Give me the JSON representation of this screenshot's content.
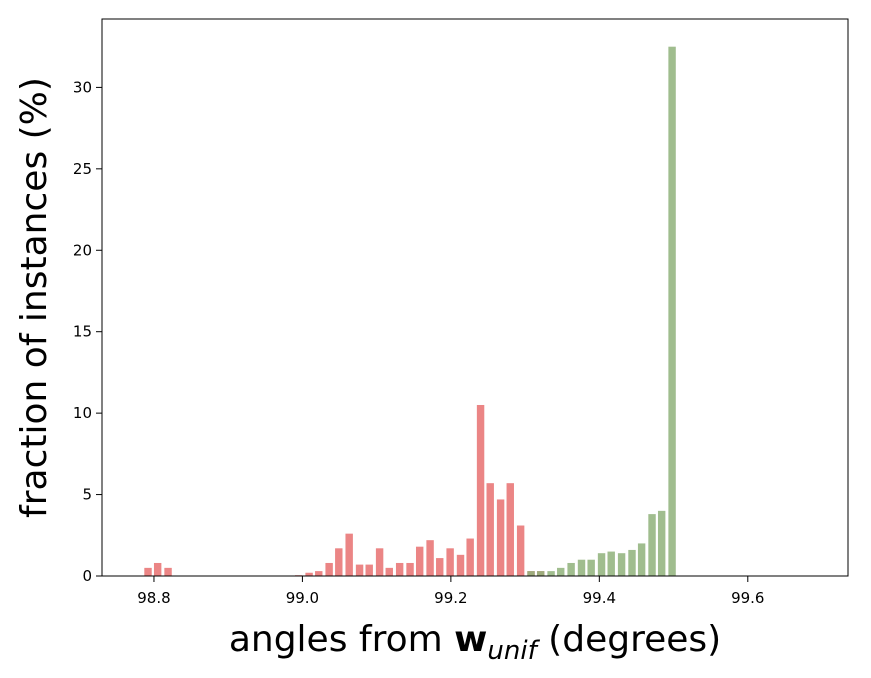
{
  "chart_data": {
    "type": "bar",
    "title": "",
    "xlabel": {
      "prefix": "angles from ",
      "symbol": "w",
      "subscript": "unif",
      "suffix": " (degrees)"
    },
    "ylabel": "fraction of instances (%)",
    "xlim": [
      98.73,
      99.735
    ],
    "ylim": [
      0,
      34.2
    ],
    "xticks": [
      98.8,
      99.0,
      99.2,
      99.4,
      99.6
    ],
    "xtick_labels": [
      "98.8",
      "99.0",
      "99.2",
      "99.4",
      "99.6"
    ],
    "yticks": [
      0,
      5,
      10,
      15,
      20,
      25,
      30
    ],
    "ytick_labels": [
      "0",
      "5",
      "10",
      "15",
      "20",
      "25",
      "30"
    ],
    "bar_width": 0.01,
    "grid": false,
    "series": [
      {
        "color": "#e87070",
        "points": [
          [
            98.792,
            0.5
          ],
          [
            98.805,
            0.8
          ],
          [
            98.819,
            0.5
          ],
          [
            98.995,
            0.05
          ],
          [
            99.009,
            0.2
          ],
          [
            99.022,
            0.3
          ],
          [
            99.036,
            0.8
          ],
          [
            99.049,
            1.7
          ],
          [
            99.063,
            2.6
          ],
          [
            99.077,
            0.7
          ],
          [
            99.09,
            0.7
          ],
          [
            99.104,
            1.7
          ],
          [
            99.117,
            0.5
          ],
          [
            99.131,
            0.8
          ],
          [
            99.145,
            0.8
          ],
          [
            99.158,
            1.8
          ],
          [
            99.172,
            2.2
          ],
          [
            99.185,
            1.1
          ],
          [
            99.199,
            1.7
          ],
          [
            99.213,
            1.3
          ],
          [
            99.226,
            2.3
          ],
          [
            99.24,
            10.5
          ],
          [
            99.253,
            5.7
          ],
          [
            99.267,
            4.7
          ],
          [
            99.28,
            5.7
          ],
          [
            99.294,
            3.1
          ],
          [
            99.308,
            0.3
          ],
          [
            99.321,
            0.3
          ]
        ]
      },
      {
        "color": "#8fb27a",
        "points": [
          [
            99.308,
            0.3
          ],
          [
            99.321,
            0.3
          ],
          [
            99.335,
            0.3
          ],
          [
            99.348,
            0.5
          ],
          [
            99.362,
            0.8
          ],
          [
            99.376,
            1.0
          ],
          [
            99.389,
            1.0
          ],
          [
            99.403,
            1.4
          ],
          [
            99.416,
            1.5
          ],
          [
            99.43,
            1.4
          ],
          [
            99.444,
            1.6
          ],
          [
            99.457,
            2.0
          ],
          [
            99.471,
            3.8
          ],
          [
            99.484,
            4.0
          ],
          [
            99.498,
            32.5
          ]
        ]
      }
    ]
  }
}
